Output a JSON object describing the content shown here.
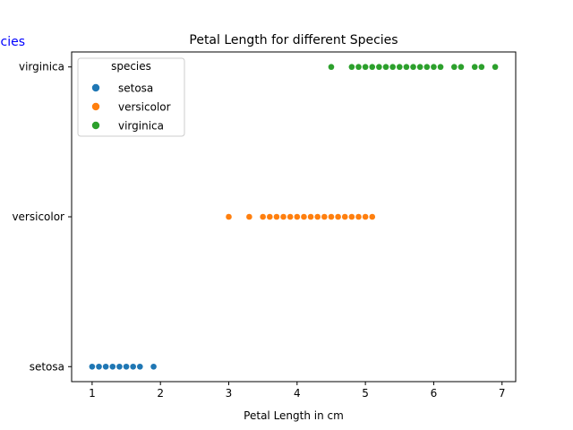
{
  "chart_data": {
    "type": "scatter",
    "title": "Petal Length for different Species",
    "xlabel": "Petal Length in cm",
    "ylabel": "",
    "clipped_label": "cies",
    "xlim": [
      0.7,
      7.2
    ],
    "ylim": [
      -0.1,
      2.1
    ],
    "xticks": [
      "1",
      "2",
      "3",
      "4",
      "5",
      "6",
      "7"
    ],
    "xtick_values": [
      1,
      2,
      3,
      4,
      5,
      6,
      7
    ],
    "categories": [
      "setosa",
      "versicolor",
      "virginica"
    ],
    "legend": {
      "title": "species",
      "placement": "top-left"
    },
    "grid": false,
    "series": [
      {
        "name": "setosa",
        "color": "#1f77b4",
        "level": 0,
        "x": [
          1.0,
          1.1,
          1.2,
          1.3,
          1.4,
          1.5,
          1.6,
          1.7,
          1.9
        ]
      },
      {
        "name": "versicolor",
        "color": "#ff7f0e",
        "level": 1,
        "x": [
          3.0,
          3.3,
          3.5,
          3.6,
          3.7,
          3.8,
          3.9,
          4.0,
          4.1,
          4.2,
          4.3,
          4.4,
          4.5,
          4.6,
          4.7,
          4.8,
          4.9,
          5.0,
          5.1
        ]
      },
      {
        "name": "virginica",
        "color": "#2ca02c",
        "level": 2,
        "x": [
          4.5,
          4.8,
          4.9,
          5.0,
          5.1,
          5.2,
          5.3,
          5.4,
          5.5,
          5.6,
          5.7,
          5.8,
          5.9,
          6.0,
          6.1,
          6.3,
          6.4,
          6.6,
          6.7,
          6.9
        ]
      }
    ]
  }
}
